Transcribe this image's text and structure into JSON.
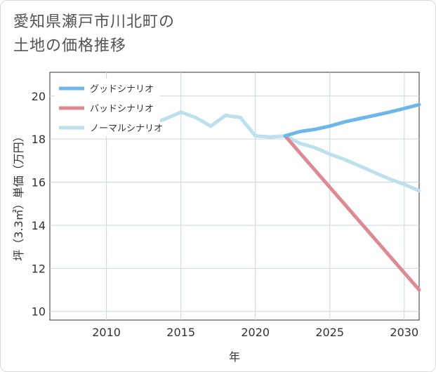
{
  "title_lines": [
    "愛知県瀬戸市川北町の",
    "土地の価格推移"
  ],
  "chart_data": {
    "type": "line",
    "xlabel": "年",
    "ylabel": "坪（3.3㎡）単価（万円）",
    "xlim": [
      2006.2,
      2031
    ],
    "ylim": [
      9.6,
      21.1
    ],
    "xticks": [
      2010,
      2015,
      2020,
      2025,
      2030
    ],
    "yticks": [
      10,
      12,
      14,
      16,
      18,
      20
    ],
    "grid": true,
    "legend_position": "top-left",
    "series": [
      {
        "name": "グッドシナリオ",
        "color": "#6cb6ea",
        "x": [
          2022,
          2023,
          2024,
          2025,
          2026,
          2027,
          2028,
          2029,
          2030,
          2031
        ],
        "y": [
          18.15,
          18.35,
          18.45,
          18.6,
          18.8,
          18.95,
          19.1,
          19.25,
          19.42,
          19.6
        ]
      },
      {
        "name": "バッドシナリオ",
        "color": "#dd8a92",
        "x": [
          2022,
          2031
        ],
        "y": [
          18.15,
          11.0
        ]
      },
      {
        "name": "ノーマルシナリオ",
        "color": "#bde0ee",
        "x": [
          2008.2,
          2009,
          2010,
          2011,
          2012,
          2013,
          2014,
          2015,
          2016,
          2017,
          2018,
          2019,
          2020,
          2021,
          2022,
          2023,
          2024,
          2025,
          2026,
          2027,
          2028,
          2029,
          2030,
          2031
        ],
        "y": [
          20.45,
          20.45,
          19.5,
          19.2,
          18.85,
          18.7,
          18.95,
          19.25,
          19.0,
          18.6,
          19.1,
          19.0,
          18.15,
          18.1,
          18.15,
          17.8,
          17.6,
          17.3,
          17.05,
          16.75,
          16.45,
          16.15,
          15.9,
          15.6
        ]
      }
    ]
  }
}
